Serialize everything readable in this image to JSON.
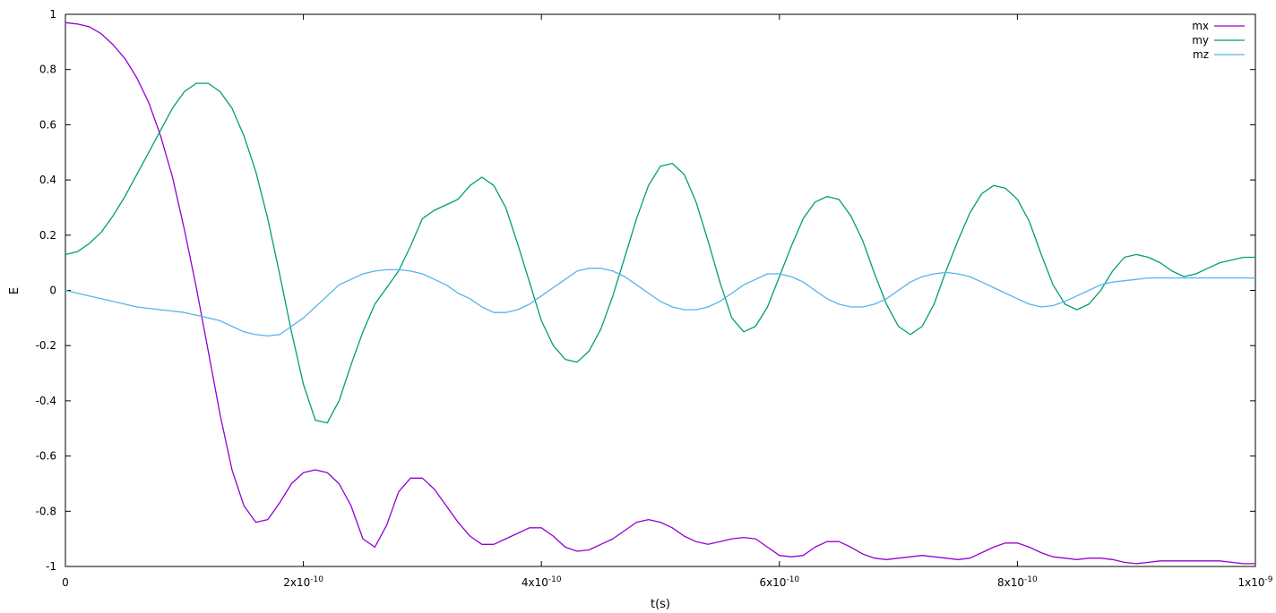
{
  "chart_data": {
    "type": "line",
    "xlabel": "t(s)",
    "ylabel": "E",
    "xlim": [
      0,
      1e-09
    ],
    "ylim": [
      -1,
      1
    ],
    "x_ticks": [
      {
        "value": 0,
        "base": "0",
        "exp": ""
      },
      {
        "value": 2e-10,
        "base": "2x10",
        "exp": "-10"
      },
      {
        "value": 4e-10,
        "base": "4x10",
        "exp": "-10"
      },
      {
        "value": 6e-10,
        "base": "6x10",
        "exp": "-10"
      },
      {
        "value": 8e-10,
        "base": "8x10",
        "exp": "-10"
      },
      {
        "value": 1e-09,
        "base": "1x10",
        "exp": "-9"
      }
    ],
    "y_ticks": [
      "1",
      "0.8",
      "0.6",
      "0.4",
      "0.2",
      "0",
      "-0.2",
      "-0.4",
      "-0.6",
      "-0.8",
      "-1"
    ],
    "grid": false,
    "legend_position": "top-right",
    "x": [
      0,
      1e-11,
      2e-11,
      3e-11,
      4e-11,
      5e-11,
      6e-11,
      7e-11,
      8e-11,
      9e-11,
      1e-10,
      1.1e-10,
      1.2e-10,
      1.3e-10,
      1.4e-10,
      1.5e-10,
      1.6e-10,
      1.7e-10,
      1.8e-10,
      1.9e-10,
      2e-10,
      2.1e-10,
      2.2e-10,
      2.3e-10,
      2.4e-10,
      2.5e-10,
      2.6e-10,
      2.7e-10,
      2.8e-10,
      2.9e-10,
      3e-10,
      3.1e-10,
      3.2e-10,
      3.3e-10,
      3.4e-10,
      3.5e-10,
      3.6e-10,
      3.7e-10,
      3.8e-10,
      3.9e-10,
      4e-10,
      4.1e-10,
      4.2e-10,
      4.3e-10,
      4.4e-10,
      4.5e-10,
      4.6e-10,
      4.7e-10,
      4.8e-10,
      4.9e-10,
      5e-10,
      5.1e-10,
      5.2e-10,
      5.3e-10,
      5.4e-10,
      5.5e-10,
      5.6e-10,
      5.7e-10,
      5.8e-10,
      5.9e-10,
      6e-10,
      6.1e-10,
      6.2e-10,
      6.3e-10,
      6.4e-10,
      6.5e-10,
      6.6e-10,
      6.7e-10,
      6.8e-10,
      6.9e-10,
      7e-10,
      7.1e-10,
      7.2e-10,
      7.3e-10,
      7.4e-10,
      7.5e-10,
      7.6e-10,
      7.7e-10,
      7.8e-10,
      7.9e-10,
      8e-10,
      8.1e-10,
      8.2e-10,
      8.3e-10,
      8.4e-10,
      8.5e-10,
      8.6e-10,
      8.7e-10,
      8.8e-10,
      8.9e-10,
      9e-10,
      9.1e-10,
      9.2e-10,
      9.3e-10,
      9.4e-10,
      9.5e-10,
      9.6e-10,
      9.7e-10,
      9.8e-10,
      9.9e-10,
      1e-09
    ],
    "series": [
      {
        "name": "mx",
        "color": "#9400d3",
        "values": [
          0.97,
          0.965,
          0.955,
          0.93,
          0.89,
          0.84,
          0.77,
          0.68,
          0.56,
          0.41,
          0.22,
          0.01,
          -0.22,
          -0.45,
          -0.65,
          -0.78,
          -0.84,
          -0.83,
          -0.77,
          -0.7,
          -0.66,
          -0.65,
          -0.66,
          -0.7,
          -0.78,
          -0.9,
          -0.93,
          -0.85,
          -0.73,
          -0.68,
          -0.68,
          -0.72,
          -0.78,
          -0.84,
          -0.89,
          -0.92,
          -0.92,
          -0.9,
          -0.88,
          -0.86,
          -0.86,
          -0.89,
          -0.93,
          -0.945,
          -0.94,
          -0.92,
          -0.9,
          -0.87,
          -0.84,
          -0.83,
          -0.84,
          -0.86,
          -0.89,
          -0.91,
          -0.92,
          -0.91,
          -0.9,
          -0.895,
          -0.9,
          -0.93,
          -0.96,
          -0.965,
          -0.96,
          -0.93,
          -0.91,
          -0.91,
          -0.93,
          -0.955,
          -0.97,
          -0.975,
          -0.97,
          -0.965,
          -0.96,
          -0.965,
          -0.97,
          -0.975,
          -0.97,
          -0.95,
          -0.93,
          -0.915,
          -0.915,
          -0.93,
          -0.95,
          -0.965,
          -0.97,
          -0.975,
          -0.97,
          -0.97,
          -0.975,
          -0.985,
          -0.99,
          -0.985,
          -0.98,
          -0.98,
          -0.98,
          -0.98,
          -0.98,
          -0.98,
          -0.985,
          -0.99,
          -0.99
        ]
      },
      {
        "name": "my",
        "color": "#009e73",
        "values": [
          0.13,
          0.14,
          0.17,
          0.21,
          0.27,
          0.34,
          0.42,
          0.5,
          0.58,
          0.66,
          0.72,
          0.75,
          0.75,
          0.72,
          0.66,
          0.56,
          0.43,
          0.26,
          0.06,
          -0.15,
          -0.34,
          -0.47,
          -0.48,
          -0.4,
          -0.27,
          -0.15,
          -0.05,
          0.01,
          0.07,
          0.16,
          0.26,
          0.29,
          0.31,
          0.33,
          0.38,
          0.41,
          0.38,
          0.3,
          0.17,
          0.03,
          -0.11,
          -0.2,
          -0.25,
          -0.26,
          -0.22,
          -0.14,
          -0.02,
          0.12,
          0.26,
          0.38,
          0.45,
          0.46,
          0.42,
          0.32,
          0.18,
          0.03,
          -0.1,
          -0.15,
          -0.13,
          -0.06,
          0.05,
          0.16,
          0.26,
          0.32,
          0.34,
          0.33,
          0.27,
          0.18,
          0.06,
          -0.05,
          -0.13,
          -0.16,
          -0.13,
          -0.05,
          0.07,
          0.18,
          0.28,
          0.35,
          0.38,
          0.37,
          0.33,
          0.25,
          0.13,
          0.02,
          -0.05,
          -0.07,
          -0.05,
          0.0,
          0.07,
          0.12,
          0.13,
          0.12,
          0.1,
          0.07,
          0.05,
          0.06,
          0.08,
          0.1,
          0.11,
          0.12,
          0.12
        ]
      },
      {
        "name": "mz",
        "color": "#56b4e9",
        "values": [
          0.0,
          -0.01,
          -0.02,
          -0.03,
          -0.04,
          -0.05,
          -0.06,
          -0.065,
          -0.07,
          -0.075,
          -0.08,
          -0.09,
          -0.1,
          -0.11,
          -0.13,
          -0.15,
          -0.16,
          -0.165,
          -0.16,
          -0.13,
          -0.1,
          -0.06,
          -0.02,
          0.02,
          0.04,
          0.06,
          0.07,
          0.075,
          0.075,
          0.07,
          0.06,
          0.04,
          0.02,
          -0.01,
          -0.03,
          -0.06,
          -0.08,
          -0.08,
          -0.07,
          -0.05,
          -0.02,
          0.01,
          0.04,
          0.07,
          0.08,
          0.08,
          0.07,
          0.05,
          0.02,
          -0.01,
          -0.04,
          -0.06,
          -0.07,
          -0.07,
          -0.06,
          -0.04,
          -0.01,
          0.02,
          0.04,
          0.06,
          0.06,
          0.05,
          0.03,
          0.0,
          -0.03,
          -0.05,
          -0.06,
          -0.06,
          -0.05,
          -0.03,
          0.0,
          0.03,
          0.05,
          0.06,
          0.065,
          0.06,
          0.05,
          0.03,
          0.01,
          -0.01,
          -0.03,
          -0.05,
          -0.06,
          -0.055,
          -0.04,
          -0.02,
          0.0,
          0.02,
          0.03,
          0.035,
          0.04,
          0.045,
          0.045,
          0.045,
          0.045,
          0.045,
          0.045,
          0.045,
          0.045,
          0.045,
          0.045
        ]
      }
    ]
  }
}
